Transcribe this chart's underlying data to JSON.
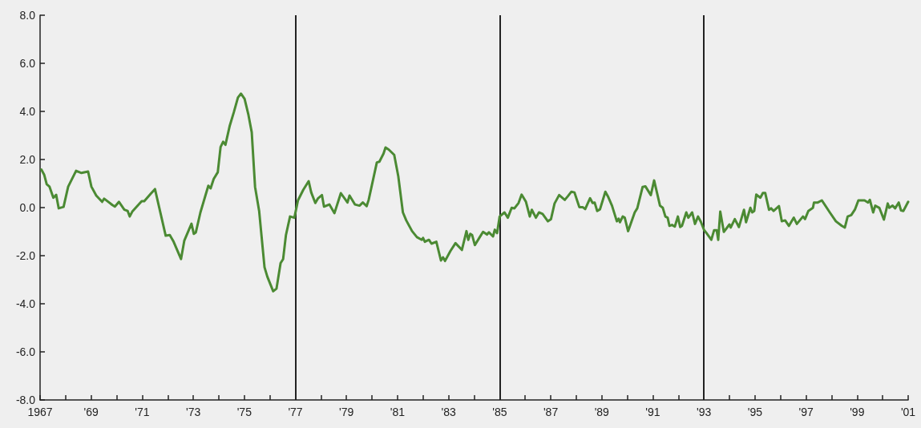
{
  "chart_data": {
    "type": "line",
    "xlim": [
      1967,
      2001
    ],
    "ylim": [
      -8,
      8
    ],
    "xticks": [
      {
        "value": 1967,
        "label": "1967"
      },
      {
        "value": 1968,
        "label": null
      },
      {
        "value": 1969,
        "label": "'69"
      },
      {
        "value": 1970,
        "label": null
      },
      {
        "value": 1971,
        "label": "'71"
      },
      {
        "value": 1972,
        "label": null
      },
      {
        "value": 1973,
        "label": "'73"
      },
      {
        "value": 1974,
        "label": null
      },
      {
        "value": 1975,
        "label": "'75"
      },
      {
        "value": 1976,
        "label": null
      },
      {
        "value": 1977,
        "label": "'77"
      },
      {
        "value": 1978,
        "label": null
      },
      {
        "value": 1979,
        "label": "'79"
      },
      {
        "value": 1980,
        "label": null
      },
      {
        "value": 1981,
        "label": "'81"
      },
      {
        "value": 1982,
        "label": null
      },
      {
        "value": 1983,
        "label": "'83"
      },
      {
        "value": 1984,
        "label": null
      },
      {
        "value": 1985,
        "label": "'85"
      },
      {
        "value": 1986,
        "label": null
      },
      {
        "value": 1987,
        "label": "'87"
      },
      {
        "value": 1988,
        "label": null
      },
      {
        "value": 1989,
        "label": "'89"
      },
      {
        "value": 1990,
        "label": null
      },
      {
        "value": 1991,
        "label": "'91"
      },
      {
        "value": 1992,
        "label": null
      },
      {
        "value": 1993,
        "label": "'93"
      },
      {
        "value": 1994,
        "label": null
      },
      {
        "value": 1995,
        "label": "'95"
      },
      {
        "value": 1996,
        "label": null
      },
      {
        "value": 1997,
        "label": "'97"
      },
      {
        "value": 1998,
        "label": null
      },
      {
        "value": 1999,
        "label": "'99"
      },
      {
        "value": 2000,
        "label": null
      },
      {
        "value": 2001,
        "label": "'01"
      }
    ],
    "yticks": [
      {
        "value": -8,
        "label": "-8.0"
      },
      {
        "value": -6,
        "label": "-6.0"
      },
      {
        "value": -4,
        "label": "-4.0"
      },
      {
        "value": -2,
        "label": "-2.0"
      },
      {
        "value": 0,
        "label": "0.0"
      },
      {
        "value": 2,
        "label": "2.0"
      },
      {
        "value": 4,
        "label": "4.0"
      },
      {
        "value": 6,
        "label": "6.0"
      },
      {
        "value": 8,
        "label": "8.0"
      }
    ],
    "grid": false,
    "marker": "none",
    "line_style": "solid",
    "ref_lines": [
      {
        "axis": "x",
        "value": 1977,
        "color": "#222222"
      },
      {
        "axis": "x",
        "value": 1985,
        "color": "#222222"
      },
      {
        "axis": "x",
        "value": 1993,
        "color": "#222222"
      }
    ],
    "series": [
      {
        "color": "#4b8a33",
        "x": [
          1967.05,
          1967.16,
          1967.26,
          1967.37,
          1967.52,
          1967.63,
          1967.73,
          1967.92,
          1968.1,
          1968.41,
          1968.62,
          1968.88,
          1969.01,
          1969.2,
          1969.43,
          1969.51,
          1969.83,
          1969.93,
          1970.09,
          1970.3,
          1970.43,
          1970.51,
          1970.61,
          1970.98,
          1971.08,
          1971.34,
          1971.5,
          1971.92,
          1972.08,
          1972.23,
          1972.52,
          1972.65,
          1972.93,
          1973.02,
          1973.1,
          1973.28,
          1973.59,
          1973.68,
          1973.8,
          1973.96,
          1974.07,
          1974.17,
          1974.26,
          1974.43,
          1974.59,
          1974.75,
          1974.87,
          1975.01,
          1975.16,
          1975.29,
          1975.42,
          1975.58,
          1975.79,
          1975.9,
          1976.13,
          1976.26,
          1976.42,
          1976.52,
          1976.63,
          1976.79,
          1976.96,
          1977.1,
          1977.31,
          1977.52,
          1977.62,
          1977.78,
          1977.89,
          1978.04,
          1978.12,
          1978.33,
          1978.53,
          1978.78,
          1979.04,
          1979.12,
          1979.33,
          1979.51,
          1979.64,
          1979.79,
          1979.87,
          1980.19,
          1980.29,
          1980.45,
          1980.53,
          1980.66,
          1980.87,
          1981.03,
          1981.21,
          1981.34,
          1981.57,
          1981.76,
          1981.95,
          1982.0,
          1982.07,
          1982.23,
          1982.33,
          1982.52,
          1982.7,
          1982.78,
          1982.86,
          1983.07,
          1983.27,
          1983.52,
          1983.7,
          1983.77,
          1983.85,
          1983.92,
          1984.03,
          1984.22,
          1984.35,
          1984.5,
          1984.58,
          1984.74,
          1984.81,
          1984.9,
          1985.0,
          1985.19,
          1985.32,
          1985.47,
          1985.58,
          1985.74,
          1985.86,
          1986.03,
          1986.18,
          1986.26,
          1986.42,
          1986.54,
          1986.68,
          1986.89,
          1987.01,
          1987.15,
          1987.33,
          1987.55,
          1987.67,
          1987.81,
          1987.93,
          1988.12,
          1988.25,
          1988.35,
          1988.54,
          1988.64,
          1988.72,
          1988.82,
          1988.93,
          1989.14,
          1989.24,
          1989.4,
          1989.59,
          1989.66,
          1989.71,
          1989.82,
          1989.9,
          1990.03,
          1990.29,
          1990.39,
          1990.6,
          1990.71,
          1990.92,
          1991.05,
          1991.28,
          1991.39,
          1991.49,
          1991.58,
          1991.65,
          1991.75,
          1991.86,
          1991.98,
          1992.07,
          1992.14,
          1992.31,
          1992.39,
          1992.54,
          1992.65,
          1992.77,
          1992.88,
          1993.01,
          1993.08,
          1993.29,
          1993.4,
          1993.5,
          1993.56,
          1993.64,
          1993.78,
          1994.0,
          1994.05,
          1994.21,
          1994.37,
          1994.57,
          1994.65,
          1994.82,
          1994.89,
          1994.97,
          1995.05,
          1995.21,
          1995.31,
          1995.4,
          1995.55,
          1995.63,
          1995.73,
          1995.94,
          1996.05,
          1996.18,
          1996.33,
          1996.52,
          1996.64,
          1996.88,
          1996.96,
          1997.09,
          1997.27,
          1997.31,
          1997.46,
          1997.62,
          1997.93,
          1998.17,
          1998.4,
          1998.52,
          1998.63,
          1998.77,
          1998.92,
          1999.05,
          1999.29,
          1999.43,
          1999.5,
          1999.63,
          1999.71,
          1999.87,
          2000.05,
          2000.2,
          2000.26,
          2000.39,
          2000.49,
          2000.63,
          2000.72,
          2000.81,
          2001.0
        ],
        "values": [
          1.58,
          1.37,
          0.97,
          0.87,
          0.41,
          0.53,
          -0.03,
          0.03,
          0.87,
          1.53,
          1.44,
          1.5,
          0.87,
          0.5,
          0.24,
          0.37,
          0.11,
          0.04,
          0.24,
          -0.09,
          -0.14,
          -0.37,
          -0.17,
          0.27,
          0.27,
          0.58,
          0.77,
          -1.17,
          -1.14,
          -1.42,
          -2.14,
          -1.37,
          -0.67,
          -1.09,
          -1.03,
          -0.2,
          0.91,
          0.8,
          1.19,
          1.47,
          2.52,
          2.74,
          2.61,
          3.41,
          3.97,
          4.58,
          4.74,
          4.52,
          3.86,
          3.13,
          0.86,
          -0.14,
          -2.48,
          -2.87,
          -3.48,
          -3.37,
          -2.31,
          -2.14,
          -1.14,
          -0.37,
          -0.42,
          0.3,
          0.74,
          1.1,
          0.63,
          0.19,
          0.39,
          0.52,
          0.04,
          0.13,
          -0.23,
          0.6,
          0.21,
          0.5,
          0.13,
          0.08,
          0.21,
          0.06,
          0.32,
          1.88,
          1.91,
          2.24,
          2.5,
          2.41,
          2.19,
          1.3,
          -0.2,
          -0.53,
          -0.98,
          -1.23,
          -1.34,
          -1.26,
          -1.42,
          -1.34,
          -1.5,
          -1.42,
          -2.2,
          -2.07,
          -2.22,
          -1.81,
          -1.48,
          -1.76,
          -0.98,
          -1.34,
          -1.09,
          -1.14,
          -1.56,
          -1.23,
          -1.01,
          -1.12,
          -1.03,
          -1.2,
          -0.92,
          -1.06,
          -0.37,
          -0.2,
          -0.42,
          -0.01,
          -0.03,
          0.19,
          0.54,
          0.24,
          -0.37,
          -0.09,
          -0.42,
          -0.2,
          -0.26,
          -0.57,
          -0.48,
          0.17,
          0.52,
          0.32,
          0.47,
          0.66,
          0.63,
          0.02,
          0.02,
          -0.06,
          0.39,
          0.19,
          0.21,
          -0.14,
          -0.07,
          0.66,
          0.47,
          0.08,
          -0.57,
          -0.46,
          -0.61,
          -0.37,
          -0.42,
          -0.98,
          -0.2,
          -0.03,
          0.86,
          0.88,
          0.52,
          1.13,
          0.08,
          -0.01,
          -0.37,
          -0.42,
          -0.76,
          -0.72,
          -0.79,
          -0.37,
          -0.81,
          -0.76,
          -0.2,
          -0.42,
          -0.2,
          -0.68,
          -0.37,
          -0.59,
          -0.94,
          -1.03,
          -1.34,
          -0.94,
          -0.94,
          -1.34,
          -0.17,
          -1.01,
          -0.7,
          -0.83,
          -0.48,
          -0.81,
          -0.09,
          -0.61,
          -0.01,
          -0.2,
          -0.14,
          0.54,
          0.41,
          0.61,
          0.61,
          -0.09,
          -0.03,
          -0.14,
          0.06,
          -0.57,
          -0.53,
          -0.76,
          -0.42,
          -0.68,
          -0.37,
          -0.48,
          -0.14,
          -0.01,
          0.21,
          0.21,
          0.3,
          -0.2,
          -0.57,
          -0.76,
          -0.83,
          -0.37,
          -0.31,
          -0.07,
          0.3,
          0.3,
          0.21,
          0.32,
          -0.2,
          0.08,
          -0.01,
          -0.5,
          0.17,
          -0.01,
          0.08,
          -0.03,
          0.21,
          -0.12,
          -0.14,
          0.24
        ]
      }
    ]
  }
}
